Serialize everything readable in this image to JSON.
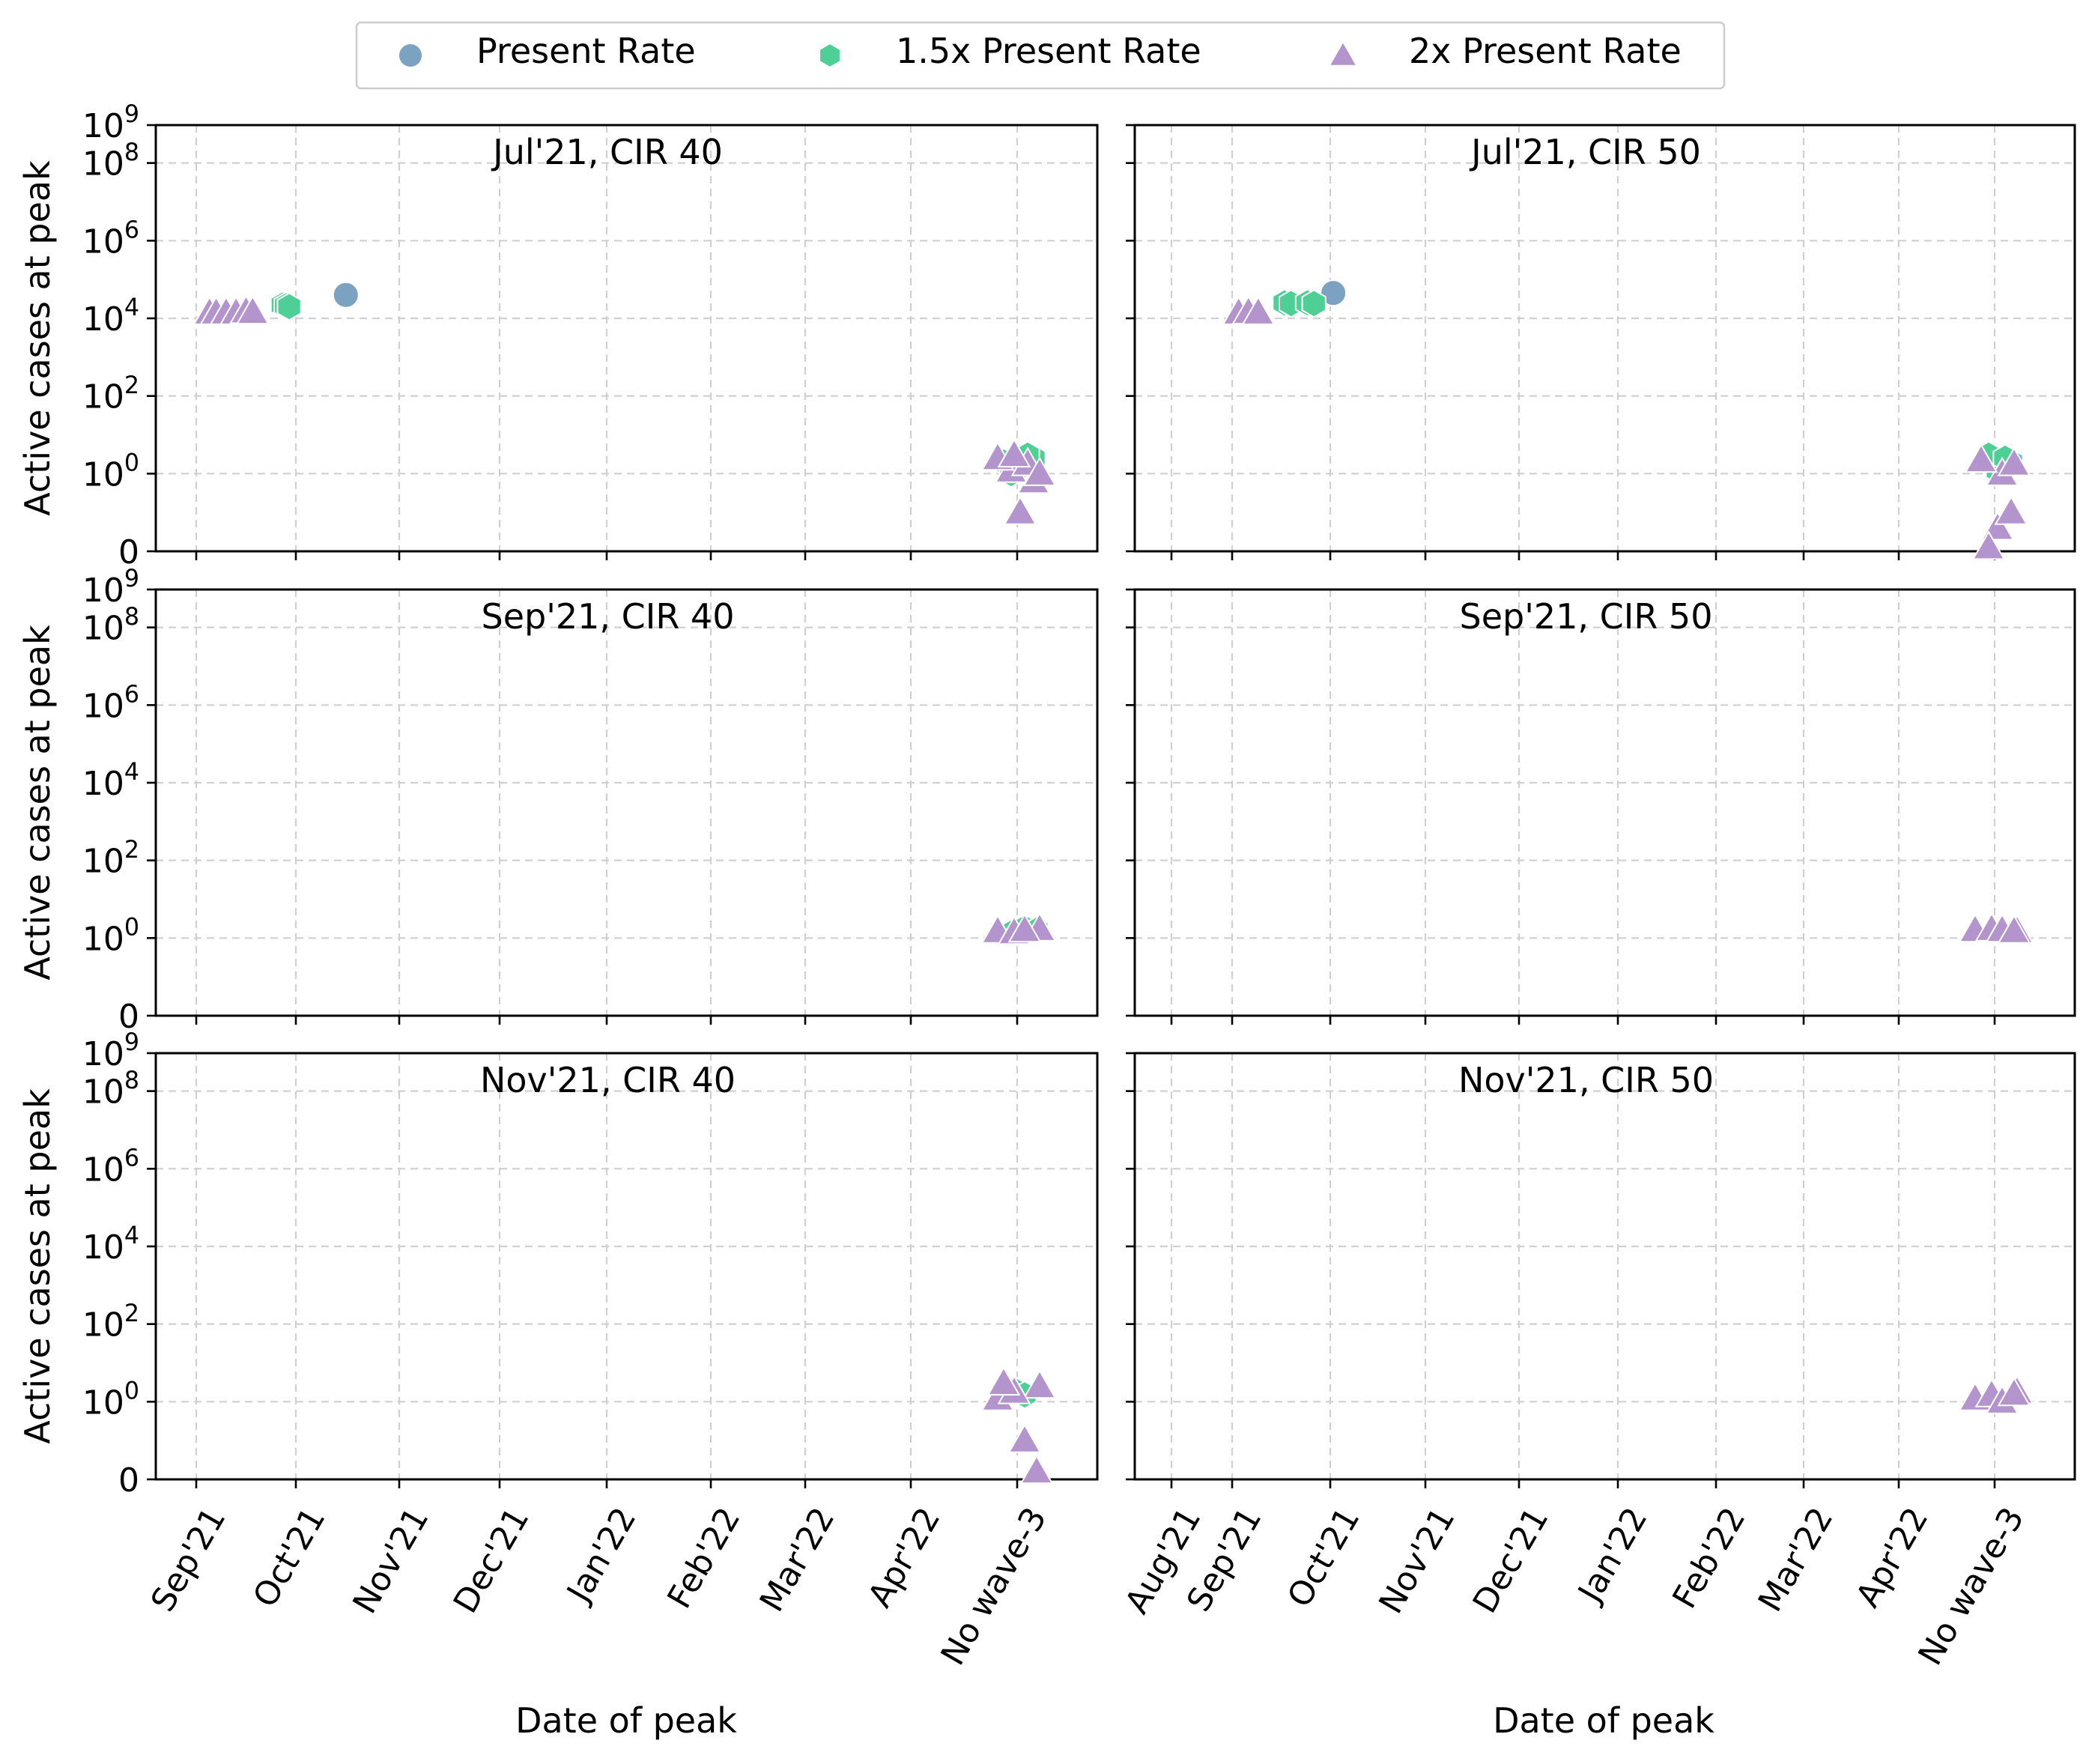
{
  "legend": [
    {
      "label": "Present Rate",
      "marker": "circle",
      "color": "#7ba3c1"
    },
    {
      "label": "1.5x Present Rate",
      "marker": "hexagon",
      "color": "#4dcf95"
    },
    {
      "label": "2x Present Rate",
      "marker": "triangle",
      "color": "#b394cd"
    }
  ],
  "y_axis_label": "Active cases at peak",
  "x_axis_label": "Date of peak",
  "y_ticks": [
    "0",
    "10^0",
    "10^2",
    "10^4",
    "10^6",
    "10^8",
    "10^9"
  ],
  "x_ticks_left": [
    "Sep'21",
    "Oct'21",
    "Nov'21",
    "Dec'21",
    "Jan'22",
    "Feb'22",
    "Mar'22",
    "Apr'22",
    "No wave-3"
  ],
  "x_ticks_right": [
    "Aug'21",
    "Sep'21",
    "Oct'21",
    "Nov'21",
    "Dec'21",
    "Jan'22",
    "Feb'22",
    "Mar'22",
    "Apr'22",
    "No wave-3"
  ],
  "chart_data": [
    {
      "type": "scatter",
      "title": "Jul'21, CIR 40",
      "y_scale": "symlog",
      "ylim": [
        0,
        1000000000
      ],
      "series": [
        {
          "name": "Present Rate",
          "points": [
            [
              "2021-10-16",
              40000
            ]
          ]
        },
        {
          "name": "1.5x Present Rate",
          "points": [
            [
              "2021-09-27",
              22000
            ],
            [
              "2021-09-28",
              21000
            ],
            [
              "2021-09-29",
              20000
            ],
            [
              "No wave-3",
              2.0
            ],
            [
              "No wave-3",
              1.5
            ],
            [
              "No wave-3",
              2.5
            ],
            [
              "No wave-3",
              1.0
            ],
            [
              "No wave-3",
              3.0
            ]
          ]
        },
        {
          "name": "2x Present Rate",
          "points": [
            [
              "2021-09-05",
              14000
            ],
            [
              "2021-09-07",
              14000
            ],
            [
              "2021-09-10",
              14000
            ],
            [
              "2021-09-13",
              14000
            ],
            [
              "2021-09-16",
              15000
            ],
            [
              "2021-09-18",
              14500
            ],
            [
              "No wave-3",
              0.5
            ],
            [
              "No wave-3",
              0.9
            ],
            [
              "No wave-3",
              1.2
            ],
            [
              "No wave-3",
              1.8
            ],
            [
              "No wave-3",
              2.5
            ],
            [
              "No wave-3",
              1.0
            ],
            [
              "No wave-3",
              3.0
            ]
          ]
        }
      ]
    },
    {
      "type": "scatter",
      "title": "Jul'21, CIR 50",
      "y_scale": "symlog",
      "ylim": [
        0,
        1000000000
      ],
      "series": [
        {
          "name": "Present Rate",
          "points": [
            [
              "2021-10-02",
              45000
            ]
          ]
        },
        {
          "name": "1.5x Present Rate",
          "points": [
            [
              "2021-09-17",
              25000
            ],
            [
              "2021-09-19",
              24000
            ],
            [
              "2021-09-24",
              25000
            ],
            [
              "2021-09-26",
              24000
            ],
            [
              "No wave-3",
              1.2
            ],
            [
              "No wave-3",
              2.0
            ],
            [
              "No wave-3",
              3.0
            ],
            [
              "No wave-3",
              2.5
            ]
          ]
        },
        {
          "name": "2x Present Rate",
          "points": [
            [
              "2021-09-03",
              14000
            ],
            [
              "2021-09-06",
              14500
            ],
            [
              "2021-09-09",
              14000
            ],
            [
              "No wave-3",
              1.0
            ],
            [
              "No wave-3",
              1.8
            ],
            [
              "No wave-3",
              2.2
            ],
            [
              "No wave-3",
              0.3
            ],
            [
              "No wave-3",
              0.5
            ],
            [
              "No wave-3",
              0.05
            ]
          ]
        }
      ]
    },
    {
      "type": "scatter",
      "title": "Sep'21, CIR 40",
      "y_scale": "symlog",
      "ylim": [
        0,
        1000000000
      ],
      "series": [
        {
          "name": "1.5x Present Rate",
          "points": [
            [
              "No wave-3",
              1.5
            ],
            [
              "No wave-3",
              1.8
            ],
            [
              "No wave-3",
              1.6
            ]
          ]
        },
        {
          "name": "2x Present Rate",
          "points": [
            [
              "No wave-3",
              1.5
            ],
            [
              "No wave-3",
              1.7
            ],
            [
              "No wave-3",
              1.4
            ],
            [
              "No wave-3",
              1.6
            ]
          ]
        }
      ]
    },
    {
      "type": "scatter",
      "title": "Sep'21, CIR 50",
      "y_scale": "symlog",
      "ylim": [
        0,
        1000000000
      ],
      "series": [
        {
          "name": "2x Present Rate",
          "points": [
            [
              "No wave-3",
              1.6
            ],
            [
              "No wave-3",
              1.5
            ],
            [
              "No wave-3",
              1.7
            ],
            [
              "No wave-3",
              1.6
            ],
            [
              "No wave-3",
              1.5
            ]
          ]
        }
      ]
    },
    {
      "type": "scatter",
      "title": "Nov'21, CIR 40",
      "y_scale": "symlog",
      "ylim": [
        0,
        1000000000
      ],
      "series": [
        {
          "name": "1.5x Present Rate",
          "points": [
            [
              "No wave-3",
              2.0
            ],
            [
              "No wave-3",
              1.5
            ]
          ]
        },
        {
          "name": "2x Present Rate",
          "points": [
            [
              "No wave-3",
              1.2
            ],
            [
              "No wave-3",
              2.5
            ],
            [
              "No wave-3",
              1.8
            ],
            [
              "No wave-3",
              0.5
            ],
            [
              "No wave-3",
              0.1
            ],
            [
              "No wave-3",
              3.0
            ]
          ]
        }
      ]
    },
    {
      "type": "scatter",
      "title": "Nov'21, CIR 50",
      "y_scale": "symlog",
      "ylim": [
        0,
        1000000000
      ],
      "series": [
        {
          "name": "2x Present Rate",
          "points": [
            [
              "No wave-3",
              1.2
            ],
            [
              "No wave-3",
              1.8
            ],
            [
              "No wave-3",
              1.5
            ],
            [
              "No wave-3",
              1.0
            ],
            [
              "No wave-3",
              1.6
            ]
          ]
        }
      ]
    }
  ]
}
